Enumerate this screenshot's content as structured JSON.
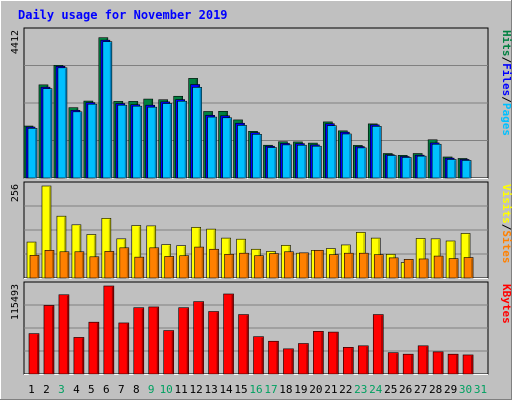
{
  "chart_data": [
    {
      "type": "bar",
      "title": "Daily usage for November 2019",
      "ymax_label": "4412",
      "ylabel_parts": [
        "Pages",
        "/",
        "Files",
        "/",
        "Hits"
      ],
      "categories": [
        "1",
        "2",
        "3",
        "4",
        "5",
        "6",
        "7",
        "8",
        "9",
        "10",
        "11",
        "12",
        "13",
        "14",
        "15",
        "16",
        "17",
        "18",
        "19",
        "20",
        "21",
        "22",
        "23",
        "24",
        "25",
        "26",
        "27",
        "28",
        "29",
        "30",
        "31"
      ],
      "weekend_days": [
        "3",
        "9",
        "10",
        "16",
        "17",
        "23",
        "24",
        "30",
        "31"
      ],
      "ylim": [
        0,
        4412
      ],
      "series": [
        {
          "name": "Hits",
          "color": "#008040",
          "values": [
            1570,
            2815,
            3405,
            2125,
            2325,
            4240,
            2315,
            2315,
            2385,
            2365,
            2470,
            3010,
            2010,
            2015,
            1755,
            1410,
            990,
            1095,
            1090,
            1055,
            1695,
            1425,
            985,
            1635,
            740,
            685,
            740,
            1155,
            635,
            590,
            0
          ]
        },
        {
          "name": "Files",
          "color": "#0000ff",
          "values": [
            1540,
            2745,
            3375,
            2045,
            2280,
            4165,
            2250,
            2215,
            2200,
            2300,
            2370,
            2825,
            1895,
            1880,
            1655,
            1370,
            960,
            1045,
            1040,
            1000,
            1640,
            1385,
            950,
            1605,
            705,
            650,
            690,
            1060,
            600,
            560,
            0
          ]
        },
        {
          "name": "Pages",
          "color": "#00c0ff",
          "values": [
            1500,
            2700,
            3330,
            2000,
            2230,
            4120,
            2200,
            2170,
            2140,
            2250,
            2320,
            2740,
            1840,
            1820,
            1590,
            1320,
            920,
            1000,
            990,
            960,
            1580,
            1330,
            910,
            1560,
            680,
            620,
            660,
            1020,
            560,
            530,
            0
          ]
        }
      ]
    },
    {
      "type": "bar",
      "ymax_label": "256",
      "ylabel_parts": [
        "Sites",
        "/",
        "Visits"
      ],
      "categories": [
        "1",
        "2",
        "3",
        "4",
        "5",
        "6",
        "7",
        "8",
        "9",
        "10",
        "11",
        "12",
        "13",
        "14",
        "15",
        "16",
        "17",
        "18",
        "19",
        "20",
        "21",
        "22",
        "23",
        "24",
        "25",
        "26",
        "27",
        "28",
        "29",
        "30",
        "31"
      ],
      "ylim": [
        0,
        256
      ],
      "series": [
        {
          "name": "Visits",
          "color": "#ffff00",
          "values": [
            100,
            256,
            172,
            148,
            121,
            166,
            109,
            146,
            145,
            93,
            90,
            141,
            136,
            111,
            108,
            80,
            74,
            91,
            69,
            77,
            82,
            92,
            127,
            111,
            66,
            43,
            110,
            109,
            103,
            124,
            0
          ]
        },
        {
          "name": "Sites",
          "color": "#ff8000",
          "values": [
            63,
            77,
            73,
            73,
            59,
            74,
            84,
            58,
            84,
            60,
            62,
            86,
            80,
            66,
            69,
            62,
            68,
            73,
            70,
            77,
            65,
            69,
            69,
            65,
            56,
            52,
            53,
            61,
            54,
            57,
            0
          ]
        }
      ]
    },
    {
      "type": "bar",
      "ymax_label": "115493",
      "ylabel_parts": [
        "KBytes"
      ],
      "categories": [
        "1",
        "2",
        "3",
        "4",
        "5",
        "6",
        "7",
        "8",
        "9",
        "10",
        "11",
        "12",
        "13",
        "14",
        "15",
        "16",
        "17",
        "18",
        "19",
        "20",
        "21",
        "22",
        "23",
        "24",
        "25",
        "26",
        "27",
        "28",
        "29",
        "30",
        "31"
      ],
      "ylim": [
        0,
        115493
      ],
      "series": [
        {
          "name": "KBytes",
          "color": "#ff0000",
          "values": [
            53000,
            90000,
            104000,
            48000,
            68000,
            115493,
            67000,
            87000,
            88000,
            57000,
            87000,
            95000,
            82000,
            105000,
            78000,
            49000,
            43000,
            33000,
            40000,
            56000,
            55000,
            35000,
            37000,
            78000,
            28000,
            26000,
            37000,
            29000,
            26000,
            25000,
            0
          ]
        }
      ]
    }
  ]
}
